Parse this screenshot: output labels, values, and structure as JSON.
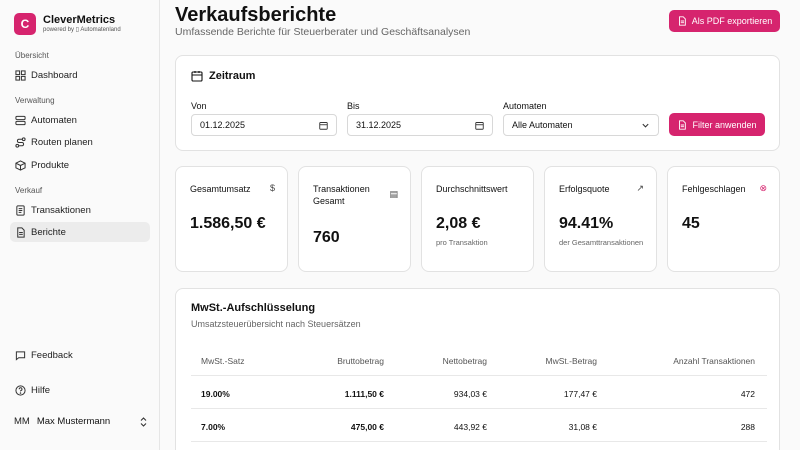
{
  "brand": {
    "logo_letter": "C",
    "name": "CleverMetrics",
    "powered_by": "powered by ▯ Automatenland",
    "accent": "#d6246e"
  },
  "sidebar": {
    "sections": [
      {
        "label": "Übersicht",
        "items": [
          {
            "label": "Dashboard",
            "icon": "grid-icon"
          }
        ]
      },
      {
        "label": "Verwaltung",
        "items": [
          {
            "label": "Automaten",
            "icon": "server-icon"
          },
          {
            "label": "Routen planen",
            "icon": "route-icon"
          },
          {
            "label": "Produkte",
            "icon": "box-icon"
          }
        ]
      },
      {
        "label": "Verkauf",
        "items": [
          {
            "label": "Transaktionen",
            "icon": "receipt-icon"
          },
          {
            "label": "Berichte",
            "icon": "report-icon",
            "active": true
          }
        ]
      }
    ],
    "feedback": "Feedback",
    "help": "Hilfe",
    "user": {
      "initials": "MM",
      "name": "Max Mustermann"
    }
  },
  "header": {
    "title": "Verkaufsberichte",
    "subtitle": "Umfassende Berichte für Steuerberater und Geschäftsanalysen",
    "export_label": "Als PDF exportieren"
  },
  "filter": {
    "title": "Zeitraum",
    "from_label": "Von",
    "from_value": "01.12.2025",
    "to_label": "Bis",
    "to_value": "31.12.2025",
    "machines_label": "Automaten",
    "machines_value": "Alle Automaten",
    "apply_label": "Filter anwenden"
  },
  "stats": [
    {
      "label": "Gesamtumsatz",
      "icon": "$",
      "value": "1.586,50 €",
      "sub": ""
    },
    {
      "label": "Transaktionen Gesamt",
      "icon": "▤",
      "value": "760",
      "sub": ""
    },
    {
      "label": "Durchschnittswert",
      "icon": "",
      "value": "2,08 €",
      "sub": "pro Transaktion"
    },
    {
      "label": "Erfolgsquote",
      "icon": "↗",
      "value": "94.41%",
      "sub": "der Gesamttransaktionen"
    },
    {
      "label": "Fehlgeschlagen",
      "icon": "⊗",
      "value": "45",
      "sub": ""
    }
  ],
  "vat": {
    "title": "MwSt.-Aufschlüsselung",
    "subtitle": "Umsatzsteuerübersicht nach Steuersätzen",
    "columns": [
      "MwSt.-Satz",
      "Bruttobetrag",
      "Nettobetrag",
      "MwSt.-Betrag",
      "Anzahl Transaktionen"
    ],
    "rows": [
      [
        "19.00%",
        "1.111,50 €",
        "934,03 €",
        "177,47 €",
        "472"
      ],
      [
        "7.00%",
        "475,00 €",
        "443,92 €",
        "31,08 €",
        "288"
      ]
    ]
  }
}
